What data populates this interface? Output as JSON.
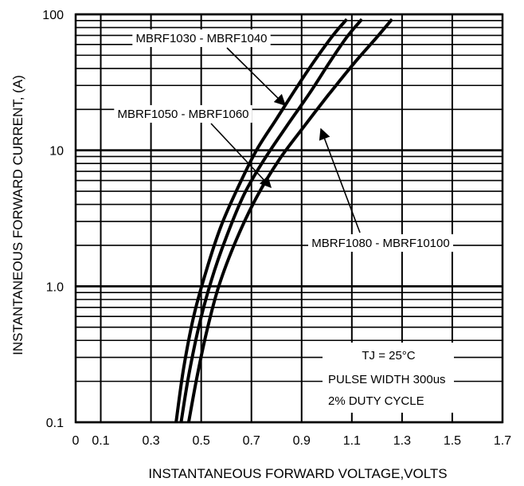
{
  "chart_data": {
    "type": "line",
    "title": "",
    "xlabel": "INSTANTANEOUS FORWARD VOLTAGE,VOLTS",
    "ylabel": "INSTANTANEOUS FORWARD CURRENT, (A)",
    "xlim": [
      0,
      1.7
    ],
    "ylim": [
      0.1,
      100
    ],
    "yscale": "log",
    "grid": true,
    "x_ticks": [
      0,
      0.1,
      0.3,
      0.5,
      0.7,
      0.9,
      1.1,
      1.3,
      1.5,
      1.7
    ],
    "x_tick_labels": [
      "0",
      "0.1",
      "0.3",
      "0.5",
      "0.7",
      "0.9",
      "1.1",
      "1.3",
      "1.5",
      "1.7"
    ],
    "y_ticks": [
      0.1,
      1,
      10,
      100
    ],
    "y_tick_labels": [
      "0.1",
      "1.0",
      "10",
      "100"
    ],
    "series": [
      {
        "name": "MBRF1030 - MBRF1040",
        "x": [
          0.4,
          0.43,
          0.47,
          0.52,
          0.58,
          0.65,
          0.72,
          0.8,
          0.88,
          0.96,
          1.03,
          1.08
        ],
        "y": [
          0.1,
          0.25,
          0.6,
          1.3,
          2.8,
          5.5,
          10,
          17,
          29,
          48,
          72,
          92
        ]
      },
      {
        "name": "MBRF1050 - MBRF1060",
        "x": [
          0.42,
          0.45,
          0.49,
          0.54,
          0.6,
          0.67,
          0.75,
          0.84,
          0.93,
          1.01,
          1.08,
          1.14
        ],
        "y": [
          0.1,
          0.22,
          0.5,
          1.1,
          2.3,
          4.7,
          8.5,
          15,
          26,
          44,
          68,
          92
        ]
      },
      {
        "name": "MBRF1080 - MBRF10100",
        "x": [
          0.45,
          0.48,
          0.52,
          0.57,
          0.64,
          0.72,
          0.81,
          0.91,
          1.01,
          1.11,
          1.2,
          1.26
        ],
        "y": [
          0.1,
          0.2,
          0.45,
          1.0,
          2.2,
          4.5,
          8.5,
          15,
          26,
          44,
          68,
          92
        ]
      }
    ],
    "annotations": [
      "MBRF1030 - MBRF1040",
      "MBRF1050 - MBRF1060",
      "MBRF1080 - MBRF10100",
      "TJ = 25°C",
      "PULSE WIDTH 300us",
      "2% DUTY CYCLE"
    ]
  }
}
